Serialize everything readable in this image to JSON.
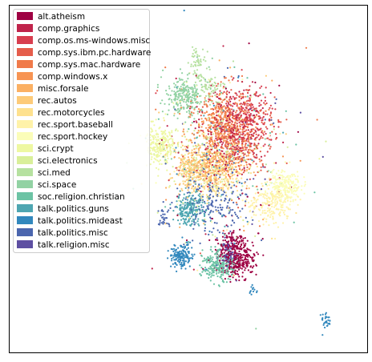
{
  "chart_data": {
    "type": "scatter",
    "title": "",
    "xlabel": "",
    "ylabel": "",
    "xticks": [],
    "yticks": [],
    "legend_position": "top-left",
    "series": [
      {
        "name": "alt.atheism",
        "color": "#9e0142"
      },
      {
        "name": "comp.graphics",
        "color": "#c0244b"
      },
      {
        "name": "comp.os.ms-windows.misc",
        "color": "#d83e4f"
      },
      {
        "name": "comp.sys.ibm.pc.hardware",
        "color": "#e55d4b"
      },
      {
        "name": "comp.sys.mac.hardware",
        "color": "#f07a4a"
      },
      {
        "name": "comp.windows.x",
        "color": "#f79453"
      },
      {
        "name": "misc.forsale",
        "color": "#fbb063"
      },
      {
        "name": "rec.autos",
        "color": "#fdcb79"
      },
      {
        "name": "rec.motorcycles",
        "color": "#fee18f"
      },
      {
        "name": "rec.sport.baseball",
        "color": "#fff2a9"
      },
      {
        "name": "rec.sport.hockey",
        "color": "#fbfdb9"
      },
      {
        "name": "sci.crypt",
        "color": "#eef8a2"
      },
      {
        "name": "sci.electronics",
        "color": "#d9ef9a"
      },
      {
        "name": "sci.med",
        "color": "#b6e1a0"
      },
      {
        "name": "sci.space",
        "color": "#92d2a3"
      },
      {
        "name": "soc.religion.christian",
        "color": "#6cc3a4"
      },
      {
        "name": "talk.politics.guns",
        "color": "#4ea6b1"
      },
      {
        "name": "talk.politics.mideast",
        "color": "#3288bd"
      },
      {
        "name": "talk.politics.misc",
        "color": "#4b66ae"
      },
      {
        "name": "talk.religion.misc",
        "color": "#5e4fa2"
      }
    ]
  }
}
